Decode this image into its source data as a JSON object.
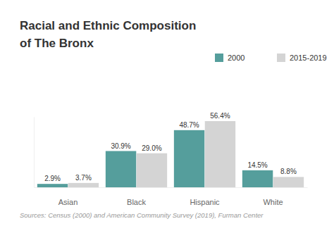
{
  "chart_data": {
    "type": "bar",
    "title": "Racial and Ethnic Composition of The Bronx",
    "source": "Sources: Census (2000) and American Community Survey (2019), Furman Center",
    "categories": [
      "Asian",
      "Black",
      "Hispanic",
      "White"
    ],
    "series": [
      {
        "name": "2000",
        "color": "#559e9c",
        "values": [
          2.9,
          30.9,
          48.7,
          14.5
        ],
        "value_labels": [
          "2.9%",
          "30.9%",
          "48.7%",
          "14.5%"
        ]
      },
      {
        "name": "2015-2019",
        "color": "#d4d4d4",
        "values": [
          3.7,
          29.0,
          56.4,
          8.8
        ],
        "value_labels": [
          "3.7%",
          "29.0%",
          "56.4%",
          "8.8%"
        ]
      }
    ],
    "ylim": [
      0,
      60
    ],
    "yticks": [
      0,
      60
    ],
    "tick_labels": "x",
    "grid": false,
    "data_labels": true,
    "legend": "top-right"
  }
}
